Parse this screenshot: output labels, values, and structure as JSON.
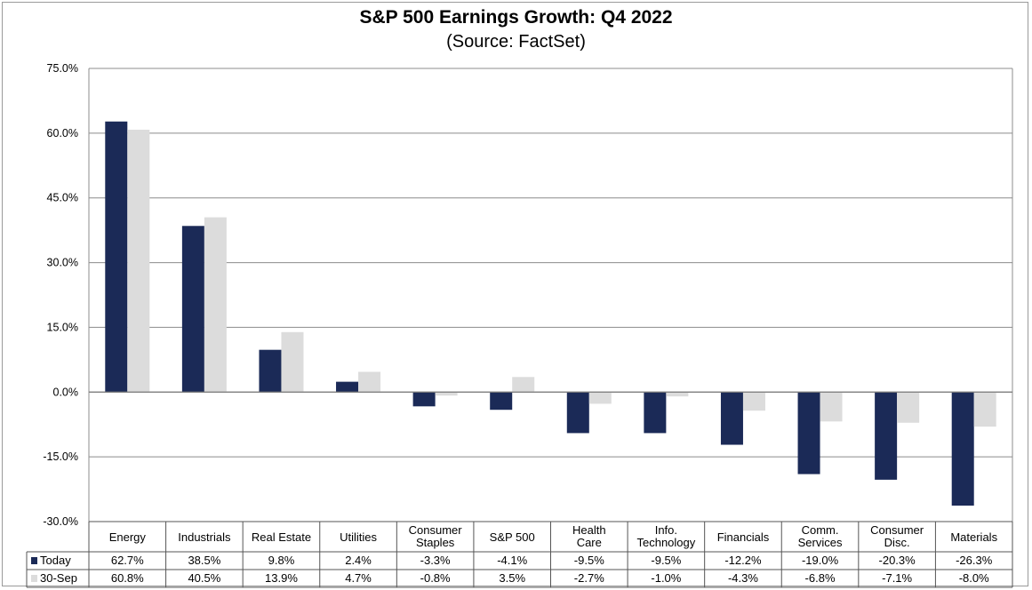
{
  "chart_data": {
    "type": "bar",
    "title": "S&P 500 Earnings Growth: Q4 2022",
    "subtitle": "(Source: FactSet)",
    "xlabel": "",
    "ylabel": "",
    "ylim": [
      -30,
      75
    ],
    "yticks": [
      75,
      60,
      45,
      30,
      15,
      0,
      -15,
      -30
    ],
    "ytick_labels": [
      "75.0%",
      "60.0%",
      "45.0%",
      "30.0%",
      "15.0%",
      "0.0%",
      "-15.0%",
      "-30.0%"
    ],
    "grid": true,
    "legend_placement": "data-table-left",
    "categories": [
      "Energy",
      "Industrials",
      "Real Estate",
      "Utilities",
      "Consumer\nStaples",
      "S&P 500",
      "Health\nCare",
      "Info.\nTechnology",
      "Financials",
      "Comm.\nServices",
      "Consumer\nDisc.",
      "Materials"
    ],
    "series": [
      {
        "name": "Today",
        "color": "#1b2a57",
        "values": [
          62.7,
          38.5,
          9.8,
          2.4,
          -3.3,
          -4.1,
          -9.5,
          -9.5,
          -12.2,
          -19.0,
          -20.3,
          -26.3
        ],
        "labels": [
          "62.7%",
          "38.5%",
          "9.8%",
          "2.4%",
          "-3.3%",
          "-4.1%",
          "-9.5%",
          "-9.5%",
          "-12.2%",
          "-19.0%",
          "-20.3%",
          "-26.3%"
        ]
      },
      {
        "name": "30-Sep",
        "color": "#dcdcdc",
        "values": [
          60.8,
          40.5,
          13.9,
          4.7,
          -0.8,
          3.5,
          -2.7,
          -1.0,
          -4.3,
          -6.8,
          -7.1,
          -8.0
        ],
        "labels": [
          "60.8%",
          "40.5%",
          "13.9%",
          "4.7%",
          "-0.8%",
          "3.5%",
          "-2.7%",
          "-1.0%",
          "-4.3%",
          "-6.8%",
          "-7.1%",
          "-8.0%"
        ]
      }
    ]
  }
}
